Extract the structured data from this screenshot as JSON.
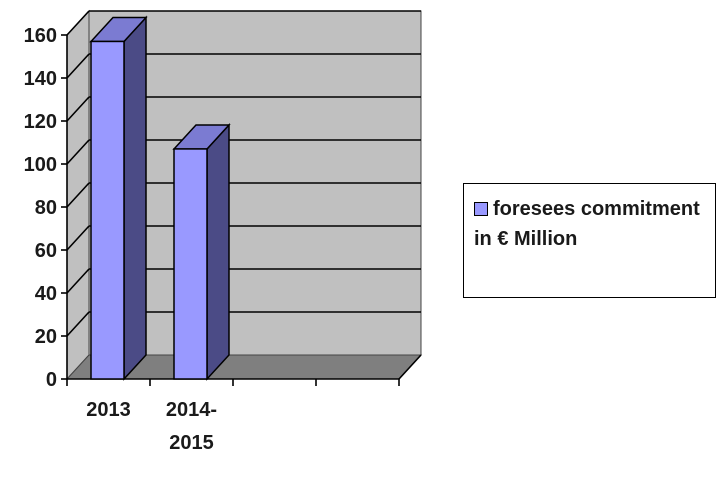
{
  "chart_data": {
    "type": "bar",
    "variant": "3d-column",
    "title": "",
    "xlabel": "",
    "ylabel": "",
    "categories": [
      "2013",
      "2014-\n2015",
      "",
      ""
    ],
    "category_labels": [
      [
        "2013"
      ],
      [
        "2014-",
        "2015"
      ],
      [],
      []
    ],
    "series": [
      {
        "name": "foresees commitment in € Million",
        "values": [
          157,
          107,
          null,
          null
        ]
      }
    ],
    "ylim": [
      0,
      160
    ],
    "yticks": [
      0,
      20,
      40,
      60,
      80,
      100,
      120,
      140,
      160
    ],
    "grid": true,
    "legend_position": "right",
    "colors": {
      "bar_front": "#9999ff",
      "bar_side": "#4b4b86",
      "bar_top": "#7b7bd2",
      "wall": "#c0c0c0",
      "floor": "#7f7f7f"
    }
  },
  "legend": {
    "items": [
      {
        "label": "foresees commitment in € Million"
      }
    ]
  }
}
